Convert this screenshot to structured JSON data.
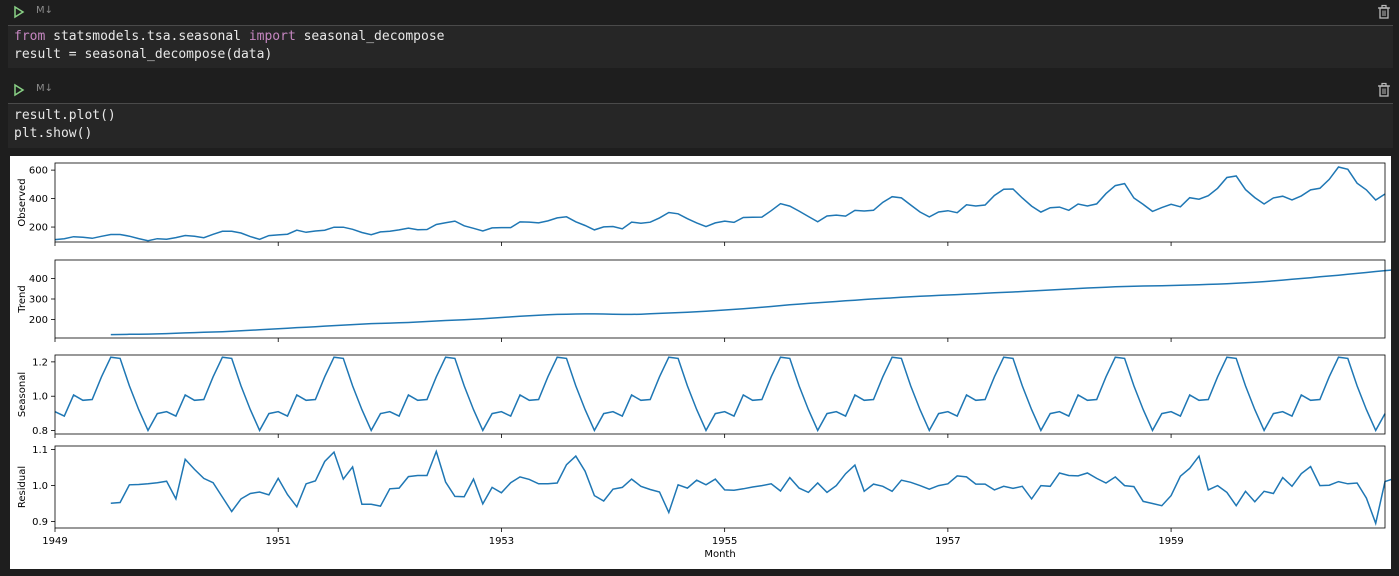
{
  "cells": [
    {
      "run_label": "M↓",
      "code": [
        {
          "kw1": "from",
          "mid": " statsmodels.tsa.seasonal ",
          "kw2": "import",
          "rest": " seasonal_decompose"
        },
        {
          "plain": "result = seasonal_decompose(data)"
        }
      ]
    },
    {
      "run_label": "M↓",
      "code": [
        {
          "plain": "result.plot()"
        },
        {
          "plain": "plt.show()"
        }
      ]
    }
  ],
  "colors": {
    "line": "#1f77b4",
    "keyword": "#c586c0",
    "run_icon": "#89d185"
  },
  "chart_data": {
    "type": "line",
    "xlabel": "Month",
    "x_tick_labels": [
      "1949",
      "1951",
      "1953",
      "1955",
      "1957",
      "1959"
    ],
    "x_range": [
      "1949-01",
      "1960-12"
    ],
    "panels": [
      {
        "ylabel": "Observed",
        "ylim": [
          95,
          650
        ],
        "yticks": [
          "200",
          "400",
          "600"
        ],
        "x_start": "1949-01",
        "values": [
          112,
          118,
          132,
          129,
          121,
          135,
          148,
          148,
          136,
          119,
          104,
          118,
          115,
          126,
          141,
          135,
          125,
          149,
          170,
          170,
          158,
          133,
          114,
          140,
          145,
          150,
          178,
          163,
          172,
          178,
          199,
          199,
          184,
          162,
          146,
          166,
          171,
          180,
          193,
          181,
          183,
          218,
          230,
          242,
          209,
          191,
          172,
          194,
          196,
          196,
          236,
          235,
          229,
          243,
          264,
          272,
          237,
          211,
          180,
          201,
          204,
          188,
          235,
          227,
          234,
          264,
          302,
          293,
          259,
          229,
          203,
          229,
          242,
          233,
          267,
          269,
          270,
          315,
          364,
          347,
          312,
          274,
          237,
          278,
          284,
          277,
          317,
          313,
          318,
          374,
          413,
          405,
          355,
          306,
          271,
          306,
          315,
          301,
          356,
          348,
          355,
          422,
          465,
          467,
          404,
          347,
          305,
          336,
          340,
          318,
          362,
          348,
          363,
          435,
          491,
          505,
          404,
          359,
          310,
          337,
          360,
          342,
          406,
          396,
          420,
          472,
          548,
          559,
          463,
          407,
          362,
          405,
          417,
          391,
          419,
          461,
          472,
          535,
          622,
          606,
          508,
          461,
          390,
          432
        ]
      },
      {
        "ylabel": "Trend",
        "ylim": [
          110,
          490
        ],
        "yticks": [
          "200",
          "300",
          "400"
        ],
        "x_start": "1949-07",
        "values": [
          126.8,
          127.2,
          127.9,
          128.6,
          129.0,
          129.8,
          131.3,
          133.1,
          134.8,
          136.4,
          137.8,
          139.3,
          140.9,
          142.9,
          145.0,
          147.3,
          149.9,
          152.5,
          155.0,
          157.8,
          160.6,
          162.8,
          165.1,
          167.9,
          170.4,
          172.8,
          175.4,
          177.9,
          180.0,
          181.2,
          182.5,
          184.0,
          185.5,
          188.0,
          190.6,
          192.9,
          195.1,
          197.1,
          199.1,
          201.2,
          203.8,
          206.8,
          209.8,
          213.0,
          215.9,
          218.5,
          221.0,
          223.3,
          225.2,
          226.0,
          226.8,
          227.4,
          227.4,
          226.7,
          225.7,
          225.1,
          225.2,
          226.0,
          227.8,
          229.8,
          231.9,
          233.8,
          235.7,
          237.9,
          240.5,
          243.3,
          246.3,
          249.4,
          252.6,
          256.0,
          259.8,
          263.7,
          267.8,
          271.6,
          275.3,
          278.7,
          281.8,
          284.8,
          287.9,
          291.1,
          294.3,
          297.4,
          300.3,
          303.0,
          305.6,
          308.2,
          310.8,
          313.2,
          315.3,
          317.5,
          319.6,
          321.6,
          323.7,
          325.8,
          328.1,
          330.2,
          332.3,
          334.3,
          336.6,
          339.0,
          341.6,
          344.0,
          346.4,
          348.7,
          351.2,
          353.5,
          355.7,
          357.6,
          359.4,
          361.0,
          362.2,
          363.2,
          364.0,
          364.8,
          365.8,
          367.0,
          368.3,
          369.8,
          371.3,
          372.8,
          374.6,
          376.6,
          379.0,
          381.8,
          384.9,
          388.3,
          392.0,
          396.0,
          400.0,
          404.0,
          408.0,
          412.0,
          416.1,
          420.4,
          424.8,
          429.3,
          433.8,
          438.2,
          442.5,
          446.5,
          450.3,
          454.0
        ]
      },
      {
        "ylabel": "Seasonal",
        "ylim": [
          0.78,
          1.24
        ],
        "yticks": [
          "0.8",
          "1.0",
          "1.2"
        ],
        "x_start": "1949-01",
        "pattern": [
          0.91,
          0.884,
          1.007,
          0.976,
          0.981,
          1.113,
          1.227,
          1.22,
          1.06,
          0.922,
          0.801,
          0.899
        ],
        "repeat": 12
      },
      {
        "ylabel": "Residual",
        "ylim": [
          0.882,
          1.11
        ],
        "yticks": [
          "0.9",
          "1.0",
          "1.1"
        ],
        "x_start": "1949-07",
        "values": [
          0.951,
          0.953,
          1.002,
          1.003,
          1.005,
          1.008,
          1.012,
          0.963,
          1.073,
          1.045,
          1.02,
          1.008,
          0.968,
          0.928,
          0.963,
          0.978,
          0.982,
          0.974,
          1.02,
          0.975,
          0.941,
          1.005,
          1.013,
          1.067,
          1.093,
          1.018,
          1.052,
          0.948,
          0.948,
          0.943,
          0.991,
          0.993,
          1.025,
          1.028,
          1.028,
          1.095,
          1.01,
          0.97,
          0.969,
          1.018,
          0.949,
          0.995,
          0.98,
          1.008,
          1.024,
          1.017,
          1.005,
          1.005,
          1.007,
          1.058,
          1.082,
          1.04,
          0.972,
          0.957,
          0.99,
          0.995,
          1.018,
          0.998,
          0.989,
          0.982,
          0.925,
          1.002,
          0.993,
          1.015,
          1.002,
          1.018,
          0.988,
          0.987,
          0.991,
          0.996,
          1.0,
          1.005,
          0.985,
          1.022,
          0.993,
          0.981,
          1.007,
          0.981,
          1.0,
          1.033,
          1.057,
          0.984,
          1.004,
          0.998,
          0.984,
          1.015,
          1.009,
          1.0,
          0.99,
          1.0,
          1.005,
          1.027,
          1.024,
          1.004,
          1.004,
          0.988,
          0.998,
          0.992,
          0.998,
          0.963,
          1.0,
          0.998,
          1.035,
          1.028,
          1.027,
          1.035,
          1.02,
          1.007,
          1.024,
          1.0,
          0.997,
          0.956,
          0.95,
          0.944,
          0.972,
          1.026,
          1.048,
          1.082,
          0.988,
          1.0,
          0.981,
          0.944,
          0.984,
          0.955,
          0.984,
          0.978,
          1.022,
          0.998,
          1.033,
          1.053,
          1.0,
          1.001,
          1.011,
          1.005,
          1.007,
          0.965,
          0.895,
          1.011,
          1.02,
          1.011
        ]
      }
    ]
  }
}
